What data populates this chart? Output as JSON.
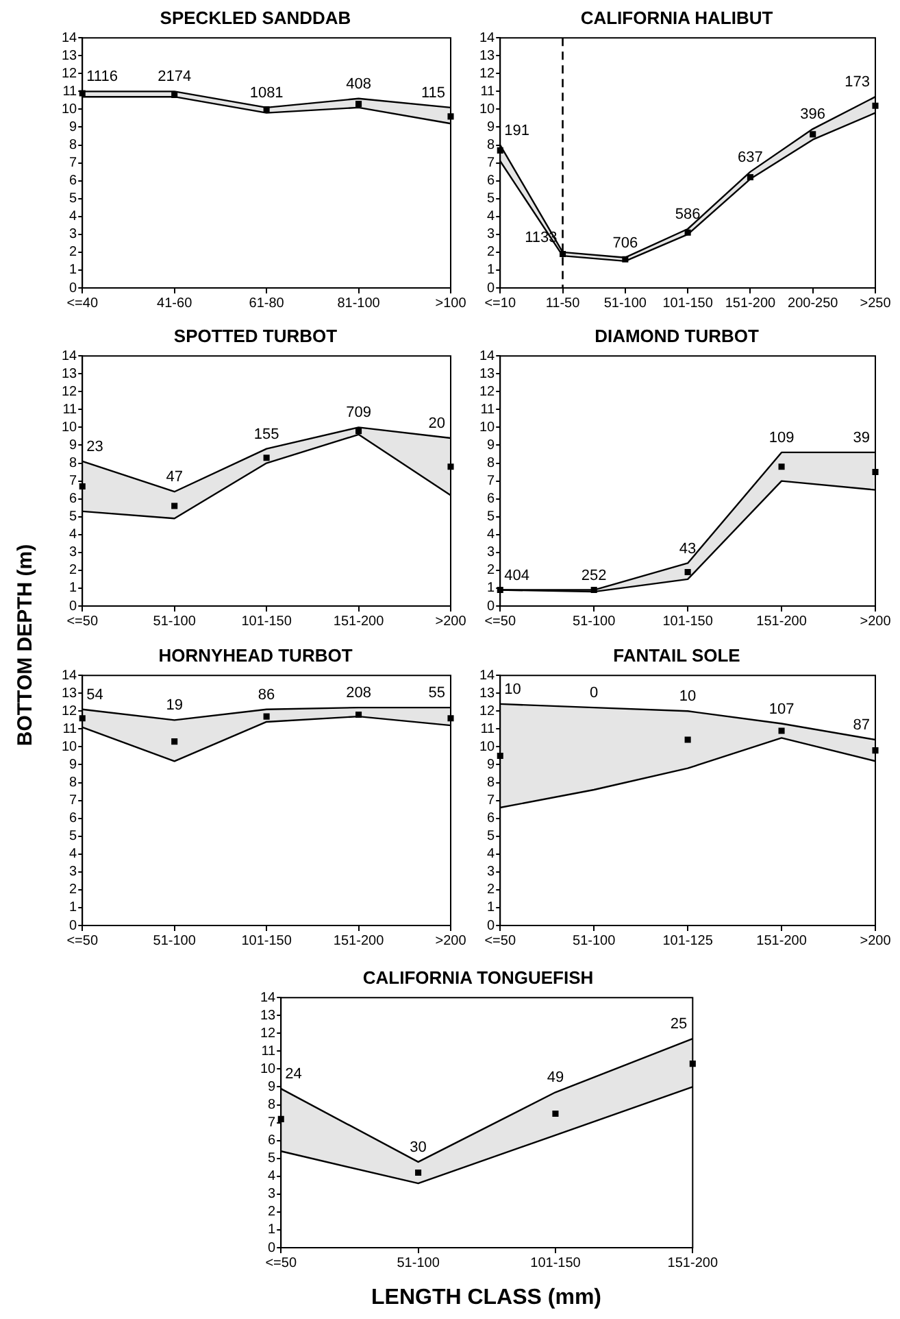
{
  "chart_data": [
    {
      "type": "line",
      "title": "SPECKLED SANDDAB",
      "categories": [
        "<=40",
        "41-60",
        "61-80",
        "81-100",
        ">100"
      ],
      "ylim": [
        0,
        14
      ],
      "yticks": [
        0,
        1,
        2,
        3,
        4,
        5,
        6,
        7,
        8,
        9,
        10,
        11,
        12,
        13,
        14
      ],
      "grid": false,
      "legend": false,
      "series": [
        {
          "color": "#000000",
          "marker": "none",
          "values": [
            11.0,
            11.0,
            10.1,
            10.6,
            10.1
          ]
        },
        {
          "color": "#000000",
          "marker": "none",
          "values": [
            10.7,
            10.7,
            9.8,
            10.1,
            9.2
          ]
        },
        {
          "type": "scatter",
          "color": "#000000",
          "marker": "square",
          "values": [
            10.9,
            10.8,
            10.0,
            10.3,
            9.6
          ],
          "lower": [
            10.7,
            10.7,
            9.8,
            10.1,
            9.2
          ],
          "upper": [
            11.0,
            11.0,
            10.1,
            10.6,
            10.1
          ]
        }
      ],
      "annotations": [
        {
          "text": "1116",
          "x": "<=40",
          "y": 11.0
        },
        {
          "text": "2174",
          "x": "41-60",
          "y": 11.0
        },
        {
          "text": "1081",
          "x": "61-80",
          "y": 10.1
        },
        {
          "text": "408",
          "x": "81-100",
          "y": 10.6
        },
        {
          "text": "115",
          "x": ">100",
          "y": 10.1
        }
      ]
    },
    {
      "type": "line",
      "title": "CALIFORNIA HALIBUT",
      "categories": [
        "<=10",
        "11-50",
        "51-100",
        "101-150",
        "151-200",
        "200-250",
        ">250"
      ],
      "ylim": [
        0,
        14
      ],
      "yticks": [
        0,
        1,
        2,
        3,
        4,
        5,
        6,
        7,
        8,
        9,
        10,
        11,
        12,
        13,
        14
      ],
      "grid": false,
      "legend": false,
      "ref_lines": [
        {
          "axis": "x",
          "value": "11-50",
          "color": "#000000",
          "line_style": "dashed"
        }
      ],
      "series": [
        {
          "color": "#000000",
          "marker": "none",
          "values": [
            8.0,
            2.0,
            1.7,
            3.3,
            6.5,
            8.9,
            10.7
          ]
        },
        {
          "color": "#000000",
          "marker": "none",
          "values": [
            7.1,
            1.8,
            1.5,
            3.0,
            6.1,
            8.3,
            9.8
          ]
        },
        {
          "type": "scatter",
          "color": "#000000",
          "marker": "square",
          "values": [
            7.7,
            1.9,
            1.6,
            3.1,
            6.2,
            8.6,
            10.2
          ],
          "lower": [
            7.1,
            1.8,
            1.5,
            3.0,
            6.1,
            8.3,
            9.8
          ],
          "upper": [
            8.0,
            2.0,
            1.7,
            3.3,
            6.5,
            8.9,
            10.7
          ]
        }
      ],
      "annotations": [
        {
          "text": "191",
          "x": "<=10",
          "y": 8.0
        },
        {
          "text": "1133",
          "x": "11-50",
          "y": 2.0
        },
        {
          "text": "706",
          "x": "51-100",
          "y": 1.7
        },
        {
          "text": "586",
          "x": "101-150",
          "y": 3.3
        },
        {
          "text": "637",
          "x": "151-200",
          "y": 6.5
        },
        {
          "text": "396",
          "x": "200-250",
          "y": 8.9
        },
        {
          "text": "173",
          "x": ">250",
          "y": 10.7
        }
      ]
    },
    {
      "type": "line",
      "title": "SPOTTED TURBOT",
      "ylabel": "BOTTOM DEPTH (m)",
      "categories": [
        "<=50",
        "51-100",
        "101-150",
        "151-200",
        ">200"
      ],
      "ylim": [
        0,
        14
      ],
      "yticks": [
        0,
        1,
        2,
        3,
        4,
        5,
        6,
        7,
        8,
        9,
        10,
        11,
        12,
        13,
        14
      ],
      "grid": false,
      "legend": false,
      "series": [
        {
          "color": "#000000",
          "marker": "none",
          "values": [
            8.1,
            6.4,
            8.8,
            10.0,
            9.4
          ]
        },
        {
          "color": "#000000",
          "marker": "none",
          "values": [
            5.3,
            4.9,
            8.0,
            9.6,
            6.2
          ]
        },
        {
          "type": "scatter",
          "color": "#000000",
          "marker": "square",
          "values": [
            6.7,
            5.6,
            8.3,
            9.8,
            7.8
          ],
          "lower": [
            5.3,
            4.9,
            8.0,
            9.6,
            6.2
          ],
          "upper": [
            8.1,
            6.4,
            8.8,
            10.0,
            9.4
          ]
        }
      ],
      "annotations": [
        {
          "text": "23",
          "x": "<=50",
          "y": 8.1
        },
        {
          "text": "47",
          "x": "51-100",
          "y": 6.4
        },
        {
          "text": "155",
          "x": "101-150",
          "y": 8.8
        },
        {
          "text": "709",
          "x": "151-200",
          "y": 10.0
        },
        {
          "text": "20",
          "x": ">200",
          "y": 9.4
        }
      ]
    },
    {
      "type": "line",
      "title": "DIAMOND TURBOT",
      "categories": [
        "<=50",
        "51-100",
        "101-150",
        "151-200",
        ">200"
      ],
      "ylim": [
        0,
        14
      ],
      "yticks": [
        0,
        1,
        2,
        3,
        4,
        5,
        6,
        7,
        8,
        9,
        10,
        11,
        12,
        13,
        14
      ],
      "grid": false,
      "legend": false,
      "series": [
        {
          "color": "#000000",
          "marker": "none",
          "values": [
            0.9,
            0.9,
            2.4,
            8.6,
            8.6
          ]
        },
        {
          "color": "#000000",
          "marker": "none",
          "values": [
            0.9,
            0.8,
            1.5,
            7.0,
            6.5
          ]
        },
        {
          "type": "scatter",
          "color": "#000000",
          "marker": "square",
          "values": [
            0.9,
            0.9,
            1.9,
            7.8,
            7.5
          ],
          "lower": [
            0.9,
            0.8,
            1.5,
            7.0,
            6.5
          ],
          "upper": [
            0.9,
            0.9,
            2.4,
            8.6,
            8.6
          ]
        }
      ],
      "annotations": [
        {
          "text": "404",
          "x": "<=50",
          "y": 0.9
        },
        {
          "text": "252",
          "x": "51-100",
          "y": 0.9
        },
        {
          "text": "43",
          "x": "101-150",
          "y": 2.4
        },
        {
          "text": "109",
          "x": "151-200",
          "y": 8.6
        },
        {
          "text": "39",
          "x": ">200",
          "y": 8.6
        }
      ]
    },
    {
      "type": "line",
      "title": "HORNYHEAD TURBOT",
      "categories": [
        "<=50",
        "51-100",
        "101-150",
        "151-200",
        ">200"
      ],
      "ylim": [
        0,
        14
      ],
      "yticks": [
        0,
        1,
        2,
        3,
        4,
        5,
        6,
        7,
        8,
        9,
        10,
        11,
        12,
        13,
        14
      ],
      "grid": false,
      "legend": false,
      "series": [
        {
          "color": "#000000",
          "marker": "none",
          "values": [
            12.1,
            11.5,
            12.1,
            12.2,
            12.2
          ]
        },
        {
          "color": "#000000",
          "marker": "none",
          "values": [
            11.1,
            9.2,
            11.4,
            11.7,
            11.2
          ]
        },
        {
          "type": "scatter",
          "color": "#000000",
          "marker": "square",
          "values": [
            11.6,
            10.3,
            11.7,
            11.8,
            11.6
          ],
          "lower": [
            11.1,
            9.2,
            11.4,
            11.7,
            11.2
          ],
          "upper": [
            12.1,
            11.5,
            12.1,
            12.2,
            12.2
          ]
        }
      ],
      "annotations": [
        {
          "text": "54",
          "x": "<=50",
          "y": 12.1
        },
        {
          "text": "19",
          "x": "51-100",
          "y": 11.5
        },
        {
          "text": "86",
          "x": "101-150",
          "y": 12.1
        },
        {
          "text": "208",
          "x": "151-200",
          "y": 12.2
        },
        {
          "text": "55",
          "x": ">200",
          "y": 12.2
        }
      ]
    },
    {
      "type": "line",
      "title": "FANTAIL SOLE",
      "categories": [
        "<=50",
        "51-100",
        "101-125",
        "151-200",
        ">200"
      ],
      "ylim": [
        0,
        14
      ],
      "yticks": [
        0,
        1,
        2,
        3,
        4,
        5,
        6,
        7,
        8,
        9,
        10,
        11,
        12,
        13,
        14
      ],
      "grid": false,
      "legend": false,
      "series": [
        {
          "color": "#000000",
          "marker": "none",
          "values": [
            12.4,
            12.2,
            12.0,
            11.3,
            10.4
          ]
        },
        {
          "color": "#000000",
          "marker": "none",
          "values": [
            6.6,
            7.6,
            8.8,
            10.5,
            9.2
          ]
        },
        {
          "type": "scatter",
          "color": "#000000",
          "marker": "square",
          "values": [
            9.5,
            null,
            10.4,
            10.9,
            9.8
          ],
          "lower": [
            6.6,
            7.6,
            8.8,
            10.5,
            9.2
          ],
          "upper": [
            12.4,
            12.2,
            12.0,
            11.3,
            10.4
          ]
        }
      ],
      "annotations": [
        {
          "text": "10",
          "x": "<=50",
          "y": 12.4
        },
        {
          "text": "0",
          "x": "51-100",
          "y": 12.2
        },
        {
          "text": "10",
          "x": "101-125",
          "y": 12.0
        },
        {
          "text": "107",
          "x": "151-200",
          "y": 11.3
        },
        {
          "text": "87",
          "x": ">200",
          "y": 10.4
        }
      ]
    },
    {
      "type": "line",
      "title": "CALIFORNIA TONGUEFISH",
      "xlabel": "LENGTH CLASS (mm)",
      "categories": [
        "<=50",
        "51-100",
        "101-150",
        "151-200"
      ],
      "ylim": [
        0,
        14
      ],
      "yticks": [
        0,
        1,
        2,
        3,
        4,
        5,
        6,
        7,
        8,
        9,
        10,
        11,
        12,
        13,
        14
      ],
      "grid": false,
      "legend": false,
      "series": [
        {
          "color": "#000000",
          "marker": "none",
          "values": [
            8.9,
            4.8,
            8.7,
            11.7
          ]
        },
        {
          "color": "#000000",
          "marker": "none",
          "values": [
            5.4,
            3.6,
            6.3,
            9.0
          ]
        },
        {
          "type": "scatter",
          "color": "#000000",
          "marker": "square",
          "values": [
            7.2,
            4.2,
            7.5,
            10.3
          ],
          "lower": [
            5.4,
            3.6,
            6.3,
            9.0
          ],
          "upper": [
            8.9,
            4.8,
            8.7,
            11.7
          ]
        }
      ],
      "annotations": [
        {
          "text": "24",
          "x": "<=50",
          "y": 8.9
        },
        {
          "text": "30",
          "x": "51-100",
          "y": 4.8
        },
        {
          "text": "49",
          "x": "101-150",
          "y": 8.7
        },
        {
          "text": "25",
          "x": "151-200",
          "y": 11.7
        }
      ]
    }
  ]
}
